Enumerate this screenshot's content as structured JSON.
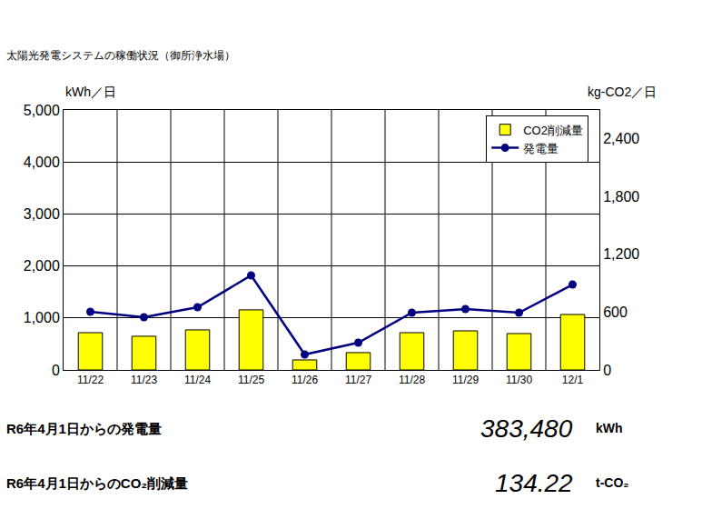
{
  "chart_data": {
    "type": "bar",
    "title": "太陽光発電システムの稼働状況（御所浄水場）",
    "y_label": "kWh／日",
    "y2_label": "kg-CO2／日",
    "categories": [
      "11/22",
      "11/23",
      "11/24",
      "11/25",
      "11/26",
      "11/27",
      "11/28",
      "11/29",
      "11/30",
      "12/1"
    ],
    "series": [
      {
        "name": "CO2削減量",
        "type": "bar",
        "axis": "y2",
        "color": "#ffff00",
        "values": [
          387,
          350,
          416,
          624,
          104,
          180,
          387,
          406,
          378,
          576
        ]
      },
      {
        "name": "発電量",
        "type": "line",
        "axis": "y",
        "color": "#000080",
        "marker": "circle",
        "line_style": "solid",
        "values": [
          1119,
          1014,
          1206,
          1818,
          297,
          524,
          1101,
          1171,
          1101,
          1643
        ]
      }
    ],
    "ylim": [
      0,
      5000
    ],
    "yticks": [
      0,
      {
        "value": 1000,
        "label": "1,000"
      },
      {
        "value": 2000,
        "label": "2,000"
      },
      {
        "value": 3000,
        "label": "3,000"
      },
      {
        "value": 4000,
        "label": "4,000"
      },
      {
        "value": 5000,
        "label": "5,000"
      }
    ],
    "y2lim": [
      0,
      2700
    ],
    "y2ticks": [
      0,
      600,
      {
        "value": 1200,
        "label": "1,200"
      },
      {
        "value": 1800,
        "label": "1,800"
      },
      {
        "value": 2400,
        "label": "2,400"
      }
    ],
    "grid": true,
    "legend": "upper right",
    "annotations": [
      {
        "text": "R6年4月1日からの発電量"
      },
      {
        "text": "383,480"
      },
      {
        "text": "kWh"
      },
      {
        "text": "R6年4月1日からのCO₂削減量"
      },
      {
        "text": "134.22"
      },
      {
        "text": "t-CO₂"
      }
    ]
  }
}
